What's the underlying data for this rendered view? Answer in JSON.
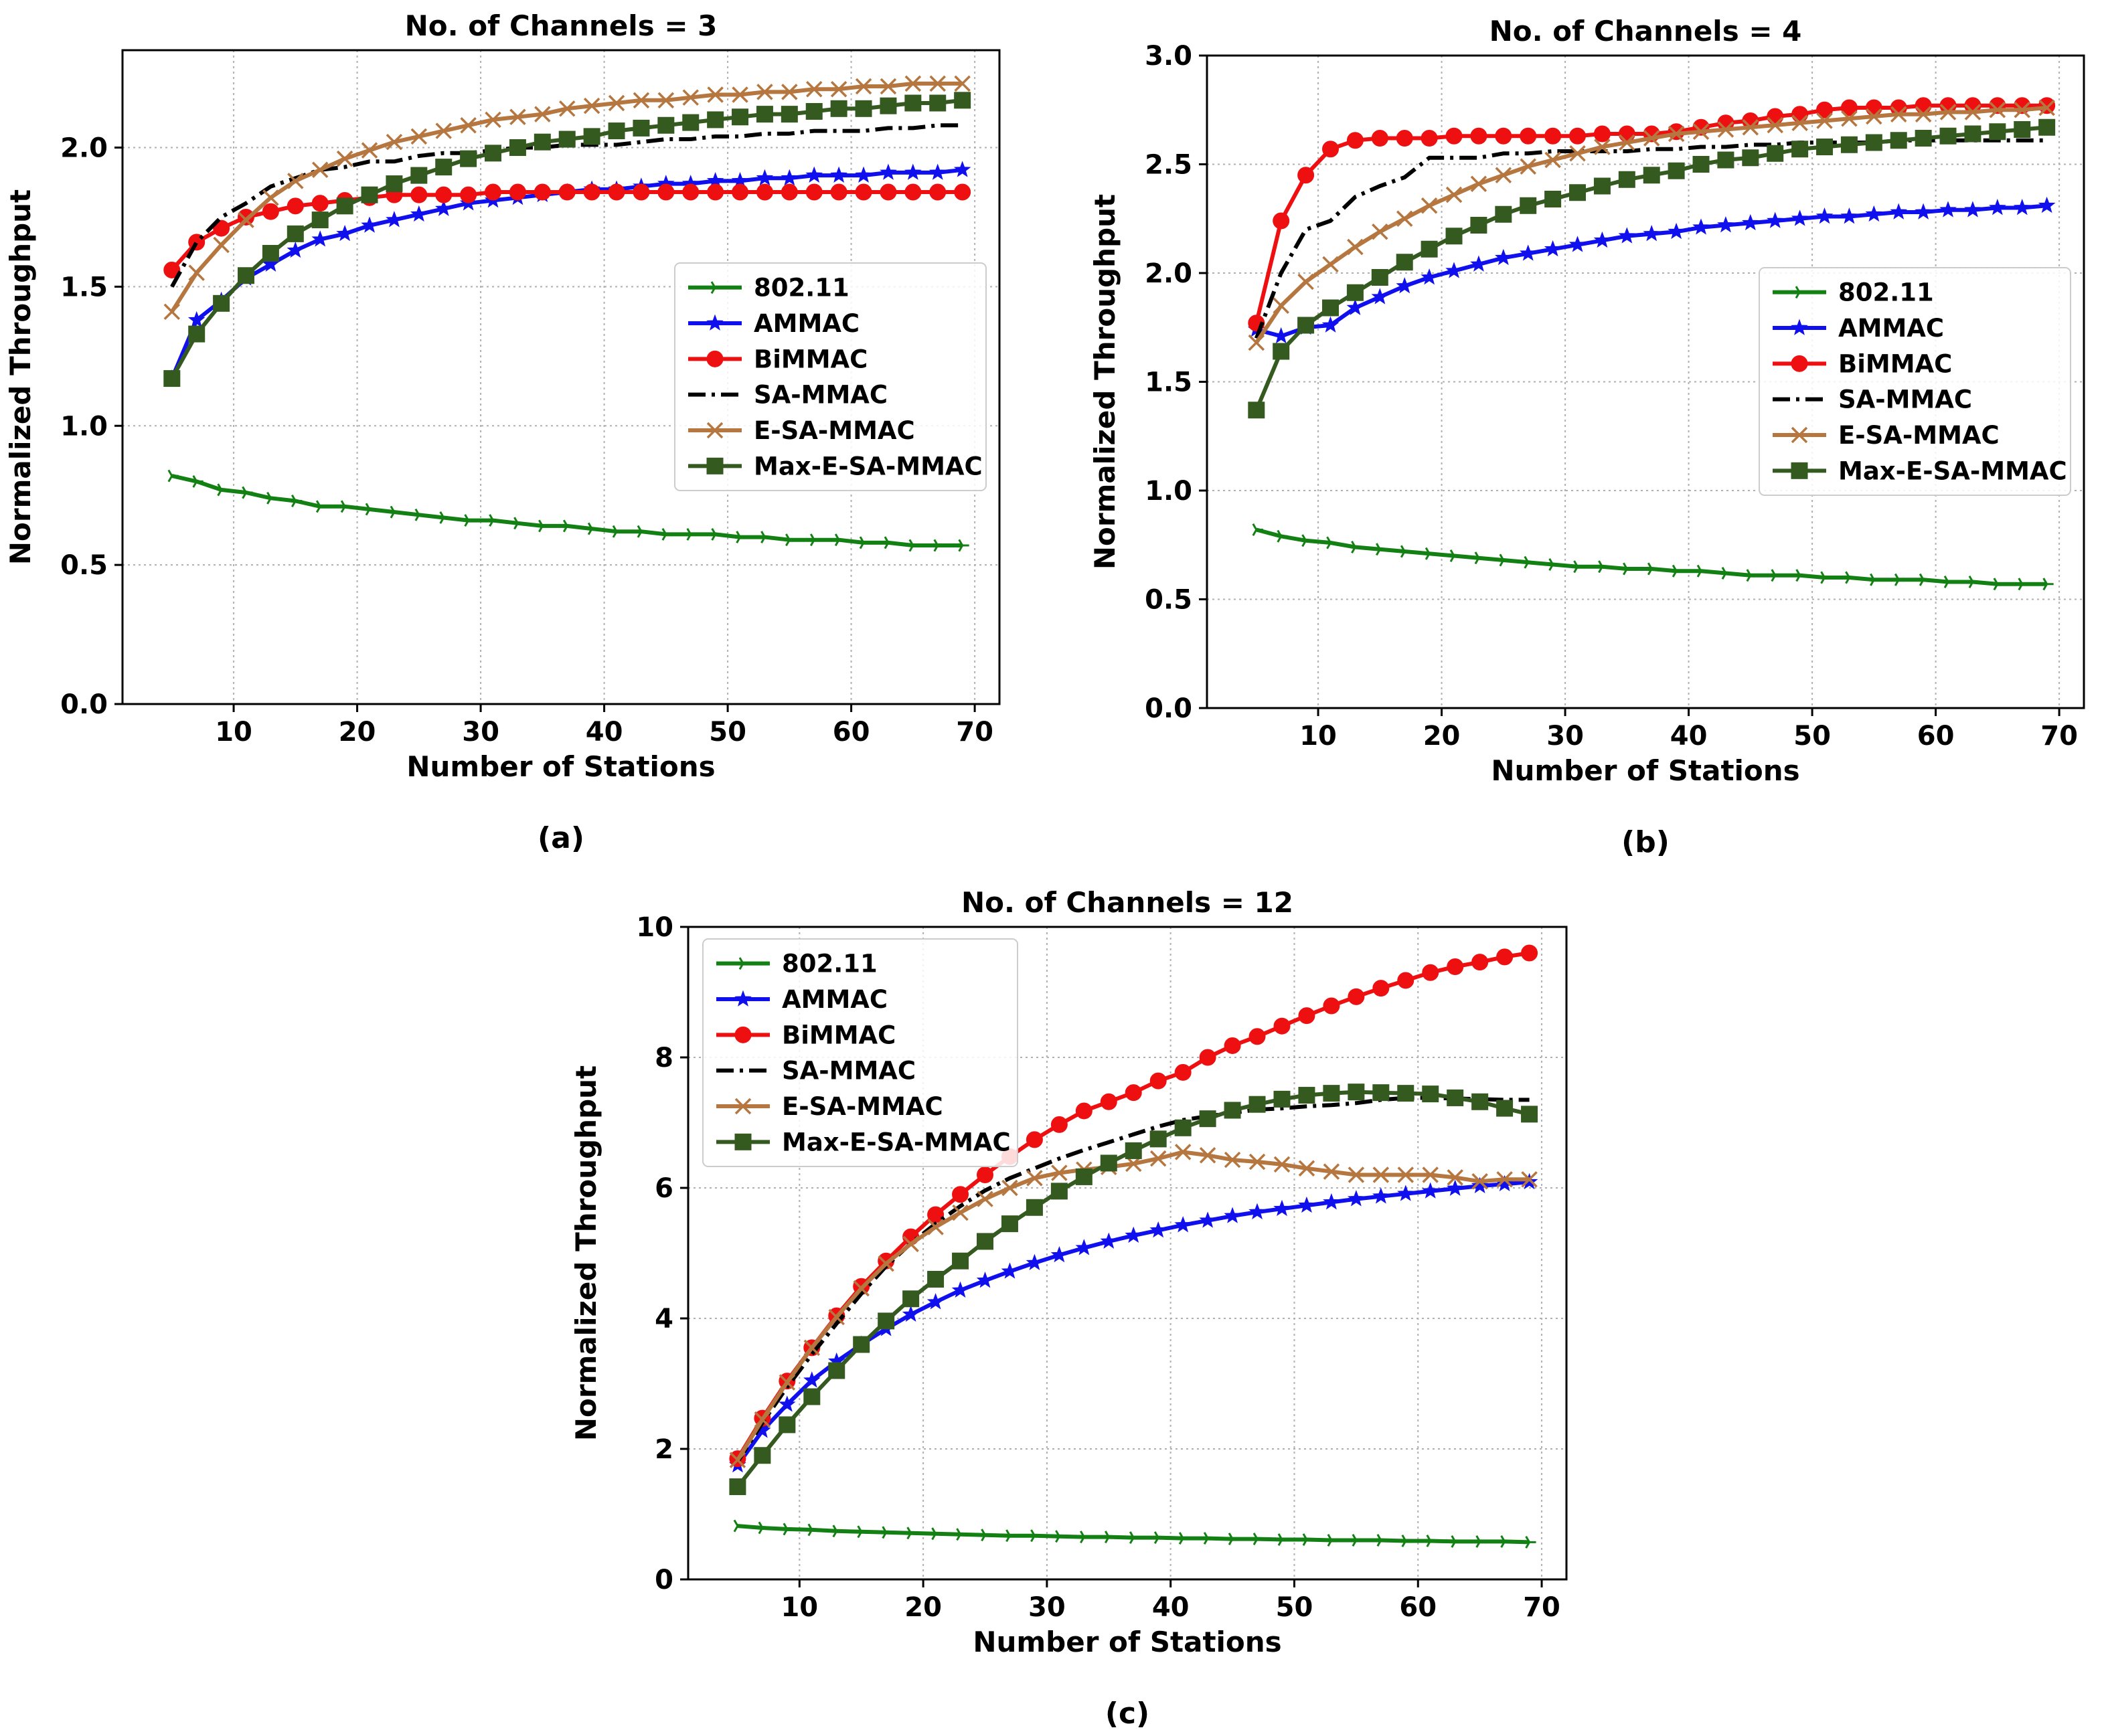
{
  "figure": {
    "colors": {
      "802.11": "#138013",
      "AMMAC": "#1010ee",
      "BiMMAC": "#ee1010",
      "SA-MMAC": "#000000",
      "E-SA-MMAC": "#b5763f",
      "Max-E-SA-MMAC": "#355a20"
    },
    "markers": {
      "802.11": "tri",
      "AMMAC": "star",
      "BiMMAC": "circle",
      "SA-MMAC": "none",
      "E-SA-MMAC": "x",
      "Max-E-SA-MMAC": "square"
    }
  },
  "chart_data": [
    {
      "type": "line",
      "id": "a",
      "title": "No. of Channels = 3",
      "caption": "(a)",
      "xlabel": "Number of Stations",
      "ylabel": "Normalized Throughput",
      "xlim": [
        1,
        72
      ],
      "ylim": [
        0,
        2.35
      ],
      "xticks": [
        10,
        20,
        30,
        40,
        50,
        60,
        70
      ],
      "yticks": [
        0.0,
        0.5,
        1.0,
        1.5,
        2.0
      ],
      "ytick_labels": [
        "0.0",
        "0.5",
        "1.0",
        "1.5",
        "2.0"
      ],
      "grid": true,
      "legend": "center-right",
      "x": [
        5,
        7,
        9,
        11,
        13,
        15,
        17,
        19,
        21,
        23,
        25,
        27,
        29,
        31,
        33,
        35,
        37,
        39,
        41,
        43,
        45,
        47,
        49,
        51,
        53,
        55,
        57,
        59,
        61,
        63,
        65,
        67,
        69
      ],
      "series": [
        {
          "name": "802.11",
          "values": [
            0.82,
            0.8,
            0.77,
            0.76,
            0.74,
            0.73,
            0.71,
            0.71,
            0.7,
            0.69,
            0.68,
            0.67,
            0.66,
            0.66,
            0.65,
            0.64,
            0.64,
            0.63,
            0.62,
            0.62,
            0.61,
            0.61,
            0.61,
            0.6,
            0.6,
            0.59,
            0.59,
            0.59,
            0.58,
            0.58,
            0.57,
            0.57,
            0.57
          ]
        },
        {
          "name": "AMMAC",
          "values": [
            1.17,
            1.38,
            1.45,
            1.53,
            1.58,
            1.63,
            1.67,
            1.69,
            1.72,
            1.74,
            1.76,
            1.78,
            1.8,
            1.81,
            1.82,
            1.83,
            1.84,
            1.85,
            1.85,
            1.86,
            1.87,
            1.87,
            1.88,
            1.88,
            1.89,
            1.89,
            1.9,
            1.9,
            1.9,
            1.91,
            1.91,
            1.91,
            1.92
          ]
        },
        {
          "name": "BiMMAC",
          "values": [
            1.56,
            1.66,
            1.71,
            1.75,
            1.77,
            1.79,
            1.8,
            1.81,
            1.82,
            1.83,
            1.83,
            1.83,
            1.83,
            1.84,
            1.84,
            1.84,
            1.84,
            1.84,
            1.84,
            1.84,
            1.84,
            1.84,
            1.84,
            1.84,
            1.84,
            1.84,
            1.84,
            1.84,
            1.84,
            1.84,
            1.84,
            1.84,
            1.84
          ]
        },
        {
          "name": "SA-MMAC",
          "values": [
            1.5,
            1.66,
            1.75,
            1.8,
            1.86,
            1.89,
            1.92,
            1.93,
            1.95,
            1.95,
            1.97,
            1.98,
            1.98,
            1.99,
            2.0,
            2.0,
            2.01,
            2.01,
            2.01,
            2.02,
            2.03,
            2.03,
            2.04,
            2.04,
            2.05,
            2.05,
            2.06,
            2.06,
            2.06,
            2.07,
            2.07,
            2.08,
            2.08
          ]
        },
        {
          "name": "E-SA-MMAC",
          "values": [
            1.41,
            1.55,
            1.65,
            1.74,
            1.82,
            1.88,
            1.92,
            1.96,
            1.99,
            2.02,
            2.04,
            2.06,
            2.08,
            2.1,
            2.11,
            2.12,
            2.14,
            2.15,
            2.16,
            2.17,
            2.17,
            2.18,
            2.19,
            2.19,
            2.2,
            2.2,
            2.21,
            2.21,
            2.22,
            2.22,
            2.23,
            2.23,
            2.23
          ]
        },
        {
          "name": "Max-E-SA-MMAC",
          "values": [
            1.17,
            1.33,
            1.44,
            1.54,
            1.62,
            1.69,
            1.74,
            1.79,
            1.83,
            1.87,
            1.9,
            1.93,
            1.96,
            1.98,
            2.0,
            2.02,
            2.03,
            2.04,
            2.06,
            2.07,
            2.08,
            2.09,
            2.1,
            2.11,
            2.12,
            2.12,
            2.13,
            2.14,
            2.14,
            2.15,
            2.16,
            2.16,
            2.17
          ]
        }
      ]
    },
    {
      "type": "line",
      "id": "b",
      "title": "No. of Channels = 4",
      "caption": "(b)",
      "xlabel": "Number of Stations",
      "ylabel": "Normalized Throughput",
      "xlim": [
        1,
        72
      ],
      "ylim": [
        0,
        3.0
      ],
      "xticks": [
        10,
        20,
        30,
        40,
        50,
        60,
        70
      ],
      "yticks": [
        0.0,
        0.5,
        1.0,
        1.5,
        2.0,
        2.5,
        3.0
      ],
      "ytick_labels": [
        "0.0",
        "0.5",
        "1.0",
        "1.5",
        "2.0",
        "2.5",
        "3.0"
      ],
      "grid": true,
      "legend": "center-right",
      "x": [
        5,
        7,
        9,
        11,
        13,
        15,
        17,
        19,
        21,
        23,
        25,
        27,
        29,
        31,
        33,
        35,
        37,
        39,
        41,
        43,
        45,
        47,
        49,
        51,
        53,
        55,
        57,
        59,
        61,
        63,
        65,
        67,
        69
      ],
      "series": [
        {
          "name": "802.11",
          "values": [
            0.82,
            0.79,
            0.77,
            0.76,
            0.74,
            0.73,
            0.72,
            0.71,
            0.7,
            0.69,
            0.68,
            0.67,
            0.66,
            0.65,
            0.65,
            0.64,
            0.64,
            0.63,
            0.63,
            0.62,
            0.61,
            0.61,
            0.61,
            0.6,
            0.6,
            0.59,
            0.59,
            0.59,
            0.58,
            0.58,
            0.57,
            0.57,
            0.57
          ]
        },
        {
          "name": "AMMAC",
          "values": [
            1.74,
            1.71,
            1.75,
            1.76,
            1.84,
            1.89,
            1.94,
            1.98,
            2.01,
            2.04,
            2.07,
            2.09,
            2.11,
            2.13,
            2.15,
            2.17,
            2.18,
            2.19,
            2.21,
            2.22,
            2.23,
            2.24,
            2.25,
            2.26,
            2.26,
            2.27,
            2.28,
            2.28,
            2.29,
            2.29,
            2.3,
            2.3,
            2.31
          ]
        },
        {
          "name": "BiMMAC",
          "values": [
            1.77,
            2.24,
            2.45,
            2.57,
            2.61,
            2.62,
            2.62,
            2.62,
            2.63,
            2.63,
            2.63,
            2.63,
            2.63,
            2.63,
            2.64,
            2.64,
            2.64,
            2.65,
            2.67,
            2.69,
            2.7,
            2.72,
            2.73,
            2.75,
            2.76,
            2.76,
            2.76,
            2.77,
            2.77,
            2.77,
            2.77,
            2.77,
            2.77
          ]
        },
        {
          "name": "SA-MMAC",
          "values": [
            1.7,
            2.0,
            2.2,
            2.24,
            2.35,
            2.4,
            2.44,
            2.53,
            2.53,
            2.53,
            2.55,
            2.55,
            2.56,
            2.56,
            2.56,
            2.56,
            2.57,
            2.57,
            2.58,
            2.58,
            2.59,
            2.59,
            2.6,
            2.6,
            2.6,
            2.6,
            2.61,
            2.61,
            2.61,
            2.61,
            2.61,
            2.61,
            2.61
          ]
        },
        {
          "name": "E-SA-MMAC",
          "values": [
            1.68,
            1.85,
            1.96,
            2.04,
            2.12,
            2.19,
            2.25,
            2.31,
            2.36,
            2.41,
            2.45,
            2.49,
            2.52,
            2.55,
            2.58,
            2.6,
            2.62,
            2.64,
            2.65,
            2.66,
            2.67,
            2.68,
            2.69,
            2.7,
            2.71,
            2.72,
            2.73,
            2.73,
            2.74,
            2.74,
            2.75,
            2.75,
            2.76
          ]
        },
        {
          "name": "Max-E-SA-MMAC",
          "values": [
            1.37,
            1.64,
            1.76,
            1.84,
            1.91,
            1.98,
            2.05,
            2.11,
            2.17,
            2.22,
            2.27,
            2.31,
            2.34,
            2.37,
            2.4,
            2.43,
            2.45,
            2.47,
            2.5,
            2.52,
            2.53,
            2.55,
            2.57,
            2.58,
            2.59,
            2.6,
            2.61,
            2.62,
            2.63,
            2.64,
            2.65,
            2.66,
            2.67
          ]
        }
      ]
    },
    {
      "type": "line",
      "id": "c",
      "title": "No. of Channels = 12",
      "caption": "(c)",
      "xlabel": "Number of Stations",
      "ylabel": "Normalized Throughput",
      "xlim": [
        1,
        72
      ],
      "ylim": [
        0,
        10
      ],
      "xticks": [
        10,
        20,
        30,
        40,
        50,
        60,
        70
      ],
      "yticks": [
        0,
        2,
        4,
        6,
        8,
        10
      ],
      "ytick_labels": [
        "0",
        "2",
        "4",
        "6",
        "8",
        "10"
      ],
      "grid": true,
      "legend": "top-left",
      "x": [
        5,
        7,
        9,
        11,
        13,
        15,
        17,
        19,
        21,
        23,
        25,
        27,
        29,
        31,
        33,
        35,
        37,
        39,
        41,
        43,
        45,
        47,
        49,
        51,
        53,
        55,
        57,
        59,
        61,
        63,
        65,
        67,
        69
      ],
      "series": [
        {
          "name": "802.11",
          "values": [
            0.82,
            0.79,
            0.77,
            0.76,
            0.74,
            0.73,
            0.72,
            0.71,
            0.7,
            0.69,
            0.68,
            0.67,
            0.67,
            0.66,
            0.65,
            0.65,
            0.64,
            0.64,
            0.63,
            0.63,
            0.62,
            0.62,
            0.61,
            0.61,
            0.6,
            0.6,
            0.6,
            0.59,
            0.59,
            0.58,
            0.58,
            0.58,
            0.57
          ]
        },
        {
          "name": "AMMAC",
          "values": [
            1.75,
            2.28,
            2.68,
            3.05,
            3.34,
            3.6,
            3.84,
            4.06,
            4.25,
            4.43,
            4.58,
            4.72,
            4.85,
            4.97,
            5.08,
            5.18,
            5.27,
            5.35,
            5.43,
            5.5,
            5.57,
            5.63,
            5.68,
            5.73,
            5.78,
            5.83,
            5.87,
            5.91,
            5.95,
            5.99,
            6.03,
            6.06,
            6.09
          ]
        },
        {
          "name": "BiMMAC",
          "values": [
            1.85,
            2.47,
            3.04,
            3.55,
            4.04,
            4.49,
            4.88,
            5.25,
            5.59,
            5.9,
            6.2,
            6.48,
            6.74,
            6.97,
            7.18,
            7.32,
            7.46,
            7.64,
            7.77,
            8.0,
            8.18,
            8.32,
            8.48,
            8.64,
            8.79,
            8.93,
            9.06,
            9.18,
            9.3,
            9.39,
            9.46,
            9.54,
            9.6
          ]
        },
        {
          "name": "SA-MMAC",
          "values": [
            1.8,
            2.4,
            2.95,
            3.45,
            3.92,
            4.38,
            4.8,
            5.15,
            5.45,
            5.72,
            5.96,
            6.15,
            6.3,
            6.45,
            6.58,
            6.7,
            6.82,
            6.94,
            7.04,
            7.1,
            7.15,
            7.2,
            7.22,
            7.25,
            7.27,
            7.3,
            7.35,
            7.38,
            7.38,
            7.37,
            7.36,
            7.35,
            7.35
          ]
        },
        {
          "name": "E-SA-MMAC",
          "values": [
            1.83,
            2.45,
            3.02,
            3.55,
            4.02,
            4.46,
            4.84,
            5.14,
            5.4,
            5.62,
            5.83,
            6.0,
            6.15,
            6.23,
            6.28,
            6.32,
            6.37,
            6.45,
            6.55,
            6.5,
            6.43,
            6.4,
            6.36,
            6.3,
            6.25,
            6.2,
            6.2,
            6.2,
            6.2,
            6.16,
            6.1,
            6.13,
            6.13
          ]
        },
        {
          "name": "Max-E-SA-MMAC",
          "values": [
            1.42,
            1.9,
            2.37,
            2.8,
            3.2,
            3.6,
            3.96,
            4.3,
            4.6,
            4.88,
            5.18,
            5.45,
            5.7,
            5.95,
            6.17,
            6.38,
            6.57,
            6.75,
            6.92,
            7.06,
            7.19,
            7.28,
            7.36,
            7.42,
            7.45,
            7.47,
            7.46,
            7.45,
            7.44,
            7.38,
            7.32,
            7.22,
            7.13
          ]
        }
      ]
    }
  ]
}
